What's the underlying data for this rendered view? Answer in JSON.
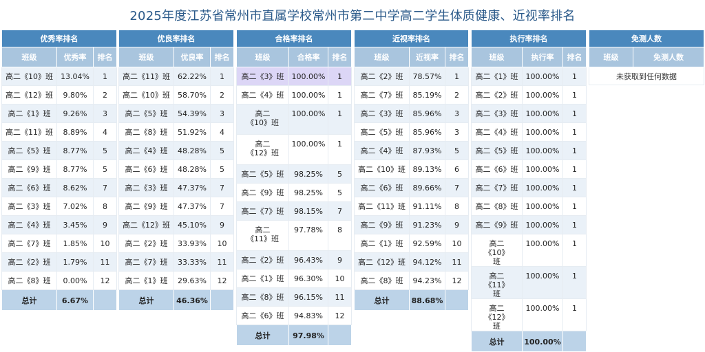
{
  "page_title": "2025年度江苏省常州市直属学校常州市第二中学高二学生体质健康、近视率排名",
  "panels": [
    {
      "title": "优秀率排名",
      "headers": [
        "班级",
        "优秀率",
        "排名"
      ],
      "rows": [
        [
          "高二《10》班",
          "13.04%",
          "1"
        ],
        [
          "高二《12》班",
          "9.80%",
          "2"
        ],
        [
          "高二《1》班",
          "9.26%",
          "3"
        ],
        [
          "高二《11》班",
          "8.89%",
          "4"
        ],
        [
          "高二《5》班",
          "8.77%",
          "5"
        ],
        [
          "高二《9》班",
          "8.77%",
          "5"
        ],
        [
          "高二《6》班",
          "8.62%",
          "7"
        ],
        [
          "高二《3》班",
          "7.02%",
          "8"
        ],
        [
          "高二《4》班",
          "3.45%",
          "9"
        ],
        [
          "高二《7》班",
          "1.85%",
          "10"
        ],
        [
          "高二《2》班",
          "1.79%",
          "11"
        ],
        [
          "高二《8》班",
          "0.00%",
          "12"
        ]
      ],
      "total_label": "总计",
      "total_value": "6.67%"
    },
    {
      "title": "优良率排名",
      "headers": [
        "班级",
        "优良率",
        "排名"
      ],
      "rows": [
        [
          "高二《11》班",
          "62.22%",
          "1"
        ],
        [
          "高二《10》班",
          "58.70%",
          "2"
        ],
        [
          "高二《5》班",
          "54.39%",
          "3"
        ],
        [
          "高二《8》班",
          "51.92%",
          "4"
        ],
        [
          "高二《4》班",
          "48.28%",
          "5"
        ],
        [
          "高二《6》班",
          "48.28%",
          "5"
        ],
        [
          "高二《3》班",
          "47.37%",
          "7"
        ],
        [
          "高二《9》班",
          "47.37%",
          "7"
        ],
        [
          "高二《12》班",
          "45.10%",
          "9"
        ],
        [
          "高二《2》班",
          "33.93%",
          "10"
        ],
        [
          "高二《7》班",
          "33.33%",
          "11"
        ],
        [
          "高二《1》班",
          "29.63%",
          "12"
        ]
      ],
      "total_label": "总计",
      "total_value": "46.36%"
    },
    {
      "title": "合格率排名",
      "headers": [
        "班级",
        "合格率",
        "排名"
      ],
      "rows": [
        [
          "高二《3》班",
          "100.00%",
          "1"
        ],
        [
          "高二《4》班",
          "100.00%",
          "1"
        ],
        [
          "高二《10》班",
          "100.00%",
          "1"
        ],
        [
          "高二《12》班",
          "100.00%",
          "1"
        ],
        [
          "高二《5》班",
          "98.25%",
          "5"
        ],
        [
          "高二《9》班",
          "98.25%",
          "5"
        ],
        [
          "高二《7》班",
          "98.15%",
          "7"
        ],
        [
          "高二《11》班",
          "97.78%",
          "8"
        ],
        [
          "高二《2》班",
          "96.43%",
          "9"
        ],
        [
          "高二《1》班",
          "96.30%",
          "10"
        ],
        [
          "高二《8》班",
          "96.15%",
          "11"
        ],
        [
          "高二《6》班",
          "94.83%",
          "12"
        ]
      ],
      "total_label": "总计",
      "total_value": "97.98%"
    },
    {
      "title": "近视率排名",
      "headers": [
        "班级",
        "近视率",
        "排名"
      ],
      "rows": [
        [
          "高二《2》班",
          "78.57%",
          "1"
        ],
        [
          "高二《7》班",
          "85.19%",
          "2"
        ],
        [
          "高二《3》班",
          "85.96%",
          "3"
        ],
        [
          "高二《5》班",
          "85.96%",
          "3"
        ],
        [
          "高二《4》班",
          "87.93%",
          "5"
        ],
        [
          "高二《10》班",
          "89.13%",
          "6"
        ],
        [
          "高二《6》班",
          "89.66%",
          "7"
        ],
        [
          "高二《11》班",
          "91.11%",
          "8"
        ],
        [
          "高二《9》班",
          "91.23%",
          "9"
        ],
        [
          "高二《1》班",
          "92.59%",
          "10"
        ],
        [
          "高二《12》班",
          "94.12%",
          "11"
        ],
        [
          "高二《8》班",
          "94.23%",
          "12"
        ]
      ],
      "total_label": "总计",
      "total_value": "88.68%"
    },
    {
      "title": "执行率排名",
      "headers": [
        "班级",
        "执行率",
        "排名"
      ],
      "rows": [
        [
          "高二《1》班",
          "100.00%",
          "1"
        ],
        [
          "高二《2》班",
          "100.00%",
          "1"
        ],
        [
          "高二《3》班",
          "100.00%",
          "1"
        ],
        [
          "高二《4》班",
          "100.00%",
          "1"
        ],
        [
          "高二《5》班",
          "100.00%",
          "1"
        ],
        [
          "高二《6》班",
          "100.00%",
          "1"
        ],
        [
          "高二《7》班",
          "100.00%",
          "1"
        ],
        [
          "高二《8》班",
          "100.00%",
          "1"
        ],
        [
          "高二《9》班",
          "100.00%",
          "1"
        ],
        [
          "高二《10》班",
          "100.00%",
          "1"
        ],
        [
          "高二《11》班",
          "100.00%",
          "1"
        ],
        [
          "高二《12》班",
          "100.00%",
          "1"
        ]
      ],
      "total_label": "总计",
      "total_value": "100.00%"
    },
    {
      "title": "免测人数",
      "headers": [
        "班级",
        "免测人数"
      ],
      "rows": [],
      "empty_text": "未获取到任何数据"
    }
  ]
}
